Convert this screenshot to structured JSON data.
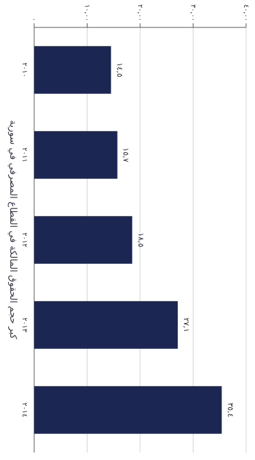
{
  "chart_data": {
    "type": "bar",
    "orientation": "horizontal",
    "title": "كبر حجم الحقوق المالكة في القطاع المصرفي في سورية",
    "categories": [
      "٢٠١٠",
      "٢٠١١",
      "٢٠١٢",
      "٢٠١٣",
      "٢٠١٤"
    ],
    "values": [
      14.5,
      15.7,
      18.5,
      27.1,
      35.4
    ],
    "value_labels": [
      "١٤,٥",
      "١٥,٧",
      "١٨,٥",
      "٢٧,١",
      "٣٥,٤"
    ],
    "xlim": [
      0,
      40
    ],
    "ticks": [
      0,
      10,
      20,
      30,
      40
    ],
    "tick_labels": [
      "٠",
      "١٠,٠٠",
      "٢٠,٠٠",
      "٣٠,٠٠",
      "٤٠,٠٠"
    ],
    "bar_color": "#1c2653",
    "grid": true
  }
}
